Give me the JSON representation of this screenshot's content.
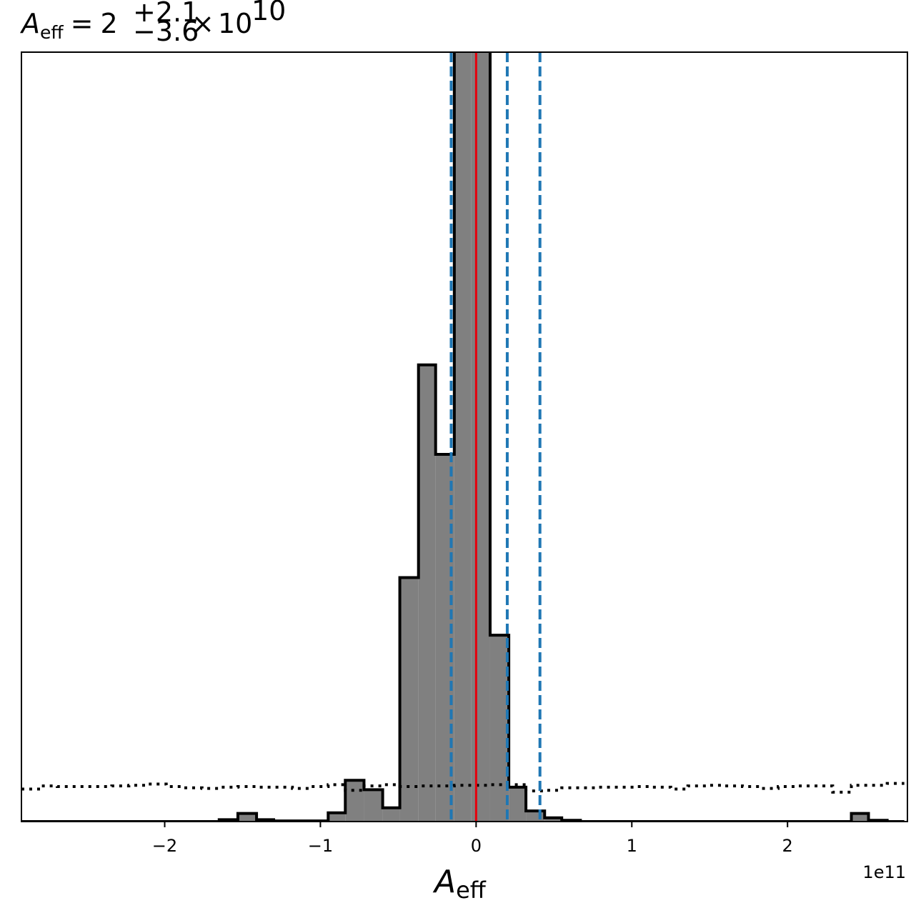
{
  "chart_data": {
    "type": "histogram",
    "title": {
      "symbol": "A",
      "symbol_sub": "eff",
      "equals": "=",
      "value": "2",
      "upper": "+2.1",
      "lower": "−3.6",
      "times": "×",
      "base": "10",
      "exponent": "10"
    },
    "xlabel": {
      "symbol": "A",
      "sub": "eff"
    },
    "x_offset_label": "1e11",
    "xlim": [
      -2.92,
      2.77
    ],
    "ylim": [
      0,
      12.3
    ],
    "xticks": [
      {
        "value": -2,
        "label": "−2"
      },
      {
        "value": -1,
        "label": "−1"
      },
      {
        "value": 0,
        "label": "0"
      },
      {
        "value": 1,
        "label": "1"
      },
      {
        "value": 2,
        "label": "2"
      }
    ],
    "y_ticks_shown": false,
    "grid": false,
    "histogram": {
      "bin_edges": [
        -2.92,
        -2.8,
        -2.69,
        -2.57,
        -2.46,
        -2.34,
        -2.23,
        -2.11,
        -1.99,
        -1.88,
        -1.76,
        -1.65,
        -1.53,
        -1.41,
        -1.3,
        -1.18,
        -1.07,
        -0.95,
        -0.84,
        -0.72,
        -0.6,
        -0.49,
        -0.37,
        -0.26,
        -0.14,
        -0.03,
        0.09,
        0.21,
        0.32,
        0.44,
        0.55,
        0.67,
        0.78,
        0.9,
        1.02,
        1.13,
        1.25,
        1.36,
        1.48,
        1.59,
        1.71,
        1.83,
        1.94,
        2.06,
        2.17,
        2.29,
        2.41,
        2.52,
        2.64,
        2.75
      ],
      "counts": [
        0,
        0,
        0,
        0,
        0,
        0,
        0,
        0,
        0,
        0,
        0,
        0.03,
        0.13,
        0.03,
        0.01,
        0.01,
        0.01,
        0.14,
        0.66,
        0.51,
        0.22,
        3.9,
        7.3,
        5.87,
        12.5,
        12.34,
        2.98,
        0.55,
        0.17,
        0.06,
        0.02,
        0,
        0,
        0,
        0,
        0,
        0,
        0,
        0,
        0,
        0,
        0,
        0,
        0,
        0,
        0,
        0.13,
        0.02,
        0
      ],
      "fill_color": "#808080",
      "edge_color": "#000000"
    },
    "reference_line": {
      "x": 0.0,
      "color": "#e8000b",
      "style": "solid"
    },
    "quantile_lines": {
      "values": [
        -0.16,
        0.2,
        0.41
      ],
      "color": "#1f77b4",
      "style": "dashed"
    },
    "prior_line": {
      "style": "dotted",
      "color": "#000000",
      "x": [
        -2.92,
        -2.8,
        -2.69,
        -2.57,
        -2.46,
        -2.34,
        -2.23,
        -2.11,
        -1.99,
        -1.88,
        -1.76,
        -1.65,
        -1.53,
        -1.41,
        -1.3,
        -1.18,
        -1.07,
        -0.95,
        -0.84,
        -0.72,
        -0.6,
        -0.49,
        -0.37,
        -0.26,
        -0.14,
        -0.03,
        0.09,
        0.21,
        0.32,
        0.44,
        0.55,
        0.67,
        0.78,
        0.9,
        1.02,
        1.13,
        1.25,
        1.36,
        1.48,
        1.59,
        1.71,
        1.83,
        1.94,
        2.06,
        2.17,
        2.29,
        2.41,
        2.52,
        2.64,
        2.75
      ],
      "values": [
        0.52,
        0.57,
        0.56,
        0.56,
        0.56,
        0.57,
        0.58,
        0.6,
        0.56,
        0.54,
        0.53,
        0.55,
        0.56,
        0.55,
        0.55,
        0.53,
        0.56,
        0.59,
        0.5,
        0.57,
        0.59,
        0.56,
        0.57,
        0.57,
        0.58,
        0.58,
        0.59,
        0.59,
        0.49,
        0.5,
        0.54,
        0.54,
        0.55,
        0.55,
        0.56,
        0.55,
        0.52,
        0.57,
        0.58,
        0.57,
        0.56,
        0.53,
        0.56,
        0.57,
        0.57,
        0.47,
        0.58,
        0.58,
        0.61
      ]
    }
  }
}
